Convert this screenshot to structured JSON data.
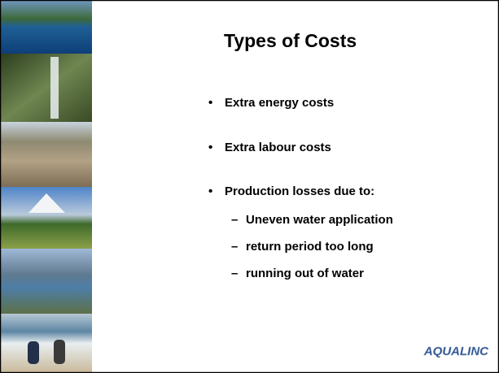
{
  "slide": {
    "title": "Types of Costs",
    "bullets": [
      "Extra energy costs",
      "Extra labour costs",
      "Production losses due to:"
    ],
    "sub_bullets": [
      "Uneven water application",
      "return period too long",
      "running out of water"
    ],
    "logo": "AQUALINC"
  }
}
